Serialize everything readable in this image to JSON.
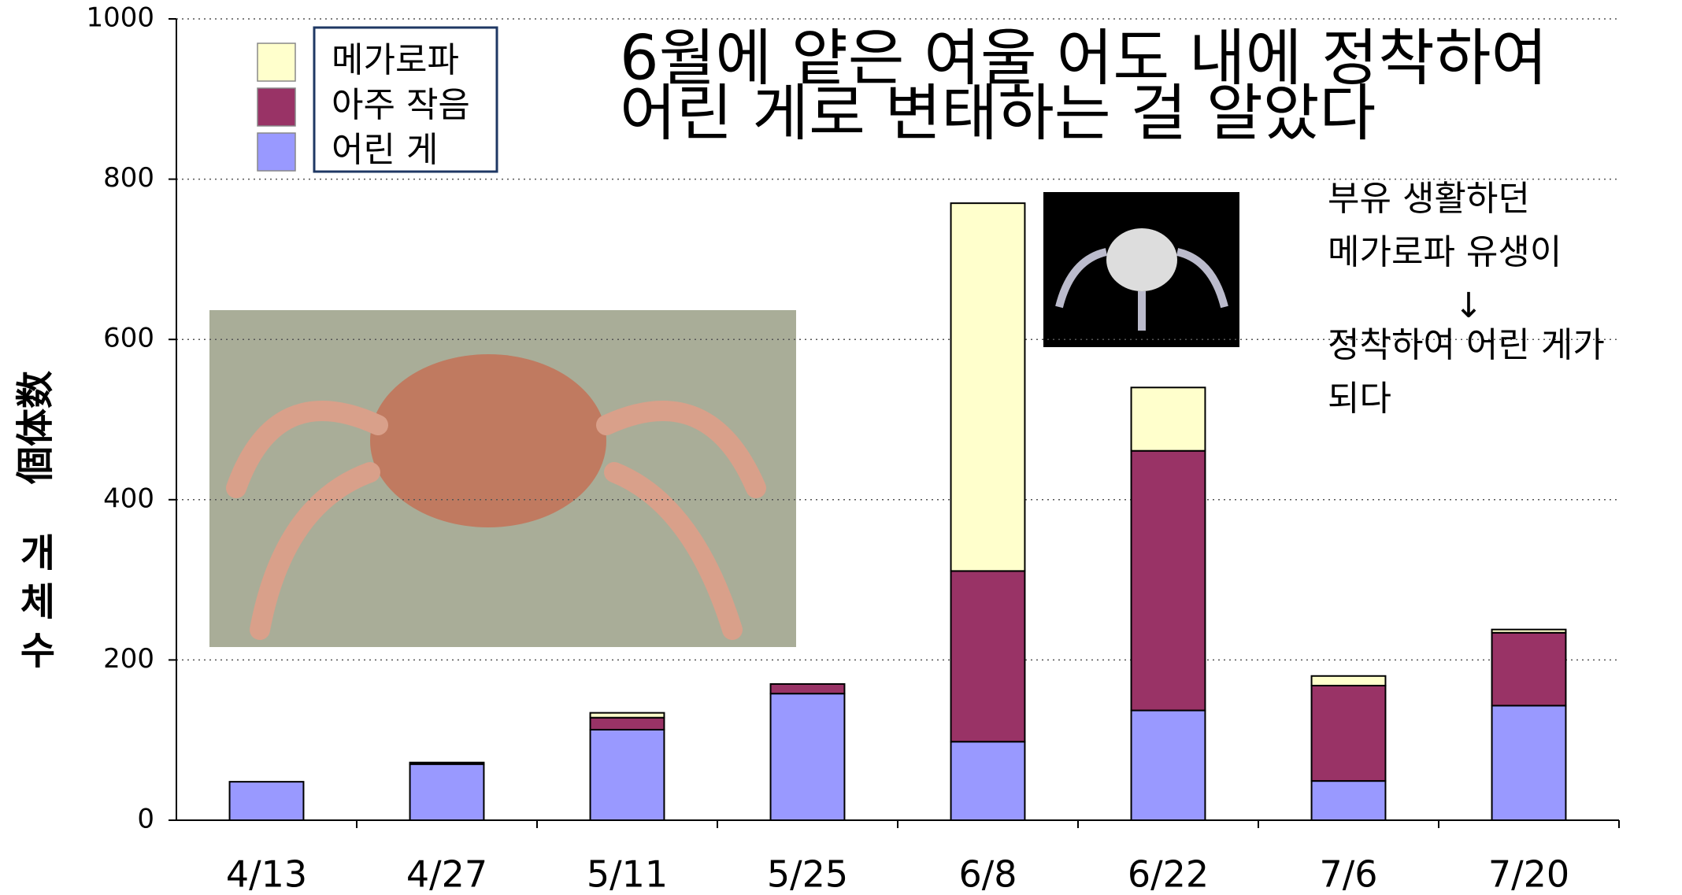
{
  "chart_data": {
    "type": "stacked_bar",
    "title_lines": [
      "6월에 얕은 여울 어도 내에 정착하여",
      "어린 게로 변태하는 걸 알았다"
    ],
    "y_label": "個体数",
    "y_label_ko": [
      "개",
      "체",
      "수"
    ],
    "annotation": [
      "부유 생활하던",
      "메가로파 유생이",
      "↓",
      "정착하여 어린 게가",
      "되다"
    ],
    "categories": [
      "4/13",
      "4/27",
      "5/11",
      "5/25",
      "6/8",
      "6/22",
      "7/6",
      "7/20"
    ],
    "series": [
      {
        "name": "메가로파",
        "color": "#ffffcc",
        "values": [
          0,
          0,
          6,
          0,
          459,
          79,
          12,
          4
        ]
      },
      {
        "name": "아주 작음",
        "color": "#993366",
        "values": [
          0,
          2,
          15,
          12,
          213,
          324,
          119,
          91
        ]
      },
      {
        "name": "어린 게",
        "color": "#9999ff",
        "values": [
          48,
          70,
          113,
          158,
          98,
          137,
          49,
          143
        ]
      }
    ],
    "ylim": [
      0,
      1000
    ],
    "yticks": [
      0,
      200,
      400,
      600,
      800,
      1000
    ],
    "grid": true
  }
}
